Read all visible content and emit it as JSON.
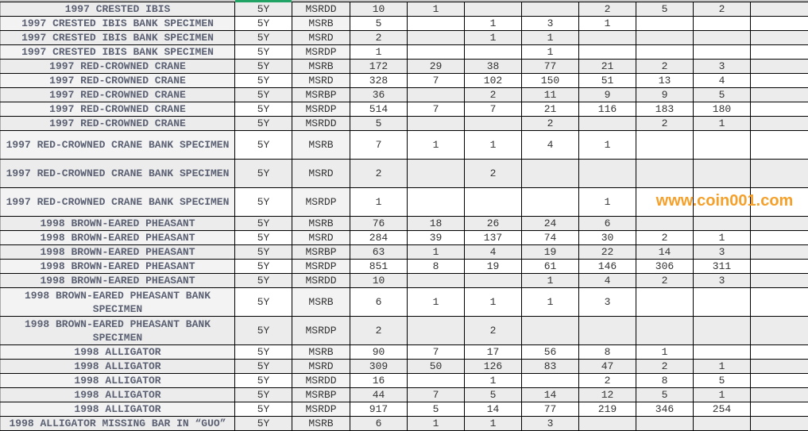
{
  "watermark": "www.coin001.com",
  "colors": {
    "selection": "#21a366",
    "watermark": "#f5a02a",
    "row_alt": "#ececec",
    "name_text": "#5c6274"
  },
  "rows": [
    {
      "name": "1997 CRESTED IBIS",
      "term": "5Y",
      "code": "MSRDD",
      "total": "10",
      "vals": [
        "1",
        "",
        "",
        "2",
        "5",
        "2",
        ""
      ]
    },
    {
      "name": "1997 CRESTED IBIS BANK SPECIMEN",
      "term": "5Y",
      "code": "MSRB",
      "total": "5",
      "vals": [
        "",
        "1",
        "3",
        "1",
        "",
        "",
        ""
      ]
    },
    {
      "name": "1997 CRESTED IBIS BANK SPECIMEN",
      "term": "5Y",
      "code": "MSRD",
      "total": "2",
      "vals": [
        "",
        "1",
        "1",
        "",
        "",
        "",
        ""
      ]
    },
    {
      "name": "1997 CRESTED IBIS BANK SPECIMEN",
      "term": "5Y",
      "code": "MSRDP",
      "total": "1",
      "vals": [
        "",
        "",
        "1",
        "",
        "",
        "",
        ""
      ]
    },
    {
      "name": "1997 RED-CROWNED CRANE",
      "term": "5Y",
      "code": "MSRB",
      "total": "172",
      "vals": [
        "29",
        "38",
        "77",
        "21",
        "2",
        "3",
        ""
      ]
    },
    {
      "name": "1997 RED-CROWNED CRANE",
      "term": "5Y",
      "code": "MSRD",
      "total": "328",
      "vals": [
        "7",
        "102",
        "150",
        "51",
        "13",
        "4",
        ""
      ]
    },
    {
      "name": "1997 RED-CROWNED CRANE",
      "term": "5Y",
      "code": "MSRBP",
      "total": "36",
      "vals": [
        "",
        "2",
        "11",
        "9",
        "9",
        "5",
        ""
      ]
    },
    {
      "name": "1997 RED-CROWNED CRANE",
      "term": "5Y",
      "code": "MSRDP",
      "total": "514",
      "vals": [
        "7",
        "7",
        "21",
        "116",
        "183",
        "180",
        ""
      ]
    },
    {
      "name": "1997 RED-CROWNED CRANE",
      "term": "5Y",
      "code": "MSRDD",
      "total": "5",
      "vals": [
        "",
        "",
        "2",
        "",
        "2",
        "1",
        ""
      ]
    },
    {
      "name": "1997 RED-CROWNED CRANE BANK SPECIMEN",
      "term": "5Y",
      "code": "MSRB",
      "total": "7",
      "vals": [
        "1",
        "1",
        "4",
        "1",
        "",
        "",
        ""
      ],
      "tall": true
    },
    {
      "name": "1997 RED-CROWNED CRANE BANK SPECIMEN",
      "term": "5Y",
      "code": "MSRD",
      "total": "2",
      "vals": [
        "",
        "2",
        "",
        "",
        "",
        "",
        ""
      ],
      "tall": true
    },
    {
      "name": "1997 RED-CROWNED CRANE BANK SPECIMEN",
      "term": "5Y",
      "code": "MSRDP",
      "total": "1",
      "vals": [
        "",
        "",
        "",
        "1",
        "",
        "",
        ""
      ],
      "tall": true
    },
    {
      "name": "1998 BROWN-EARED PHEASANT",
      "term": "5Y",
      "code": "MSRB",
      "total": "76",
      "vals": [
        "18",
        "26",
        "24",
        "6",
        "",
        "",
        ""
      ]
    },
    {
      "name": "1998 BROWN-EARED PHEASANT",
      "term": "5Y",
      "code": "MSRD",
      "total": "284",
      "vals": [
        "39",
        "137",
        "74",
        "30",
        "2",
        "1",
        ""
      ]
    },
    {
      "name": "1998 BROWN-EARED PHEASANT",
      "term": "5Y",
      "code": "MSRBP",
      "total": "63",
      "vals": [
        "1",
        "4",
        "19",
        "22",
        "14",
        "3",
        ""
      ]
    },
    {
      "name": "1998 BROWN-EARED PHEASANT",
      "term": "5Y",
      "code": "MSRDP",
      "total": "851",
      "vals": [
        "8",
        "19",
        "61",
        "146",
        "306",
        "311",
        ""
      ]
    },
    {
      "name": "1998 BROWN-EARED PHEASANT",
      "term": "5Y",
      "code": "MSRDD",
      "total": "10",
      "vals": [
        "",
        "",
        "1",
        "4",
        "2",
        "3",
        ""
      ]
    },
    {
      "name": "1998 BROWN-EARED PHEASANT BANK SPECIMEN",
      "term": "5Y",
      "code": "MSRB",
      "total": "6",
      "vals": [
        "1",
        "1",
        "1",
        "3",
        "",
        "",
        ""
      ],
      "tall": true
    },
    {
      "name": "1998 BROWN-EARED PHEASANT BANK SPECIMEN",
      "term": "5Y",
      "code": "MSRDP",
      "total": "2",
      "vals": [
        "",
        "2",
        "",
        "",
        "",
        "",
        ""
      ],
      "tall": true
    },
    {
      "name": "1998 ALLIGATOR",
      "term": "5Y",
      "code": "MSRB",
      "total": "90",
      "vals": [
        "7",
        "17",
        "56",
        "8",
        "1",
        "",
        ""
      ]
    },
    {
      "name": "1998 ALLIGATOR",
      "term": "5Y",
      "code": "MSRD",
      "total": "309",
      "vals": [
        "50",
        "126",
        "83",
        "47",
        "2",
        "1",
        ""
      ]
    },
    {
      "name": "1998 ALLIGATOR",
      "term": "5Y",
      "code": "MSRDD",
      "total": "16",
      "vals": [
        "",
        "1",
        "",
        "2",
        "8",
        "5",
        ""
      ]
    },
    {
      "name": "1998 ALLIGATOR",
      "term": "5Y",
      "code": "MSRBP",
      "total": "44",
      "vals": [
        "7",
        "5",
        "14",
        "12",
        "5",
        "1",
        ""
      ]
    },
    {
      "name": "1998 ALLIGATOR",
      "term": "5Y",
      "code": "MSRDP",
      "total": "917",
      "vals": [
        "5",
        "14",
        "77",
        "219",
        "346",
        "254",
        ""
      ]
    },
    {
      "name": "1998 ALLIGATOR MISSING BAR IN “GUO”",
      "term": "5Y",
      "code": "MSRB",
      "total": "6",
      "vals": [
        "1",
        "1",
        "3",
        "",
        "",
        "",
        ""
      ]
    }
  ]
}
